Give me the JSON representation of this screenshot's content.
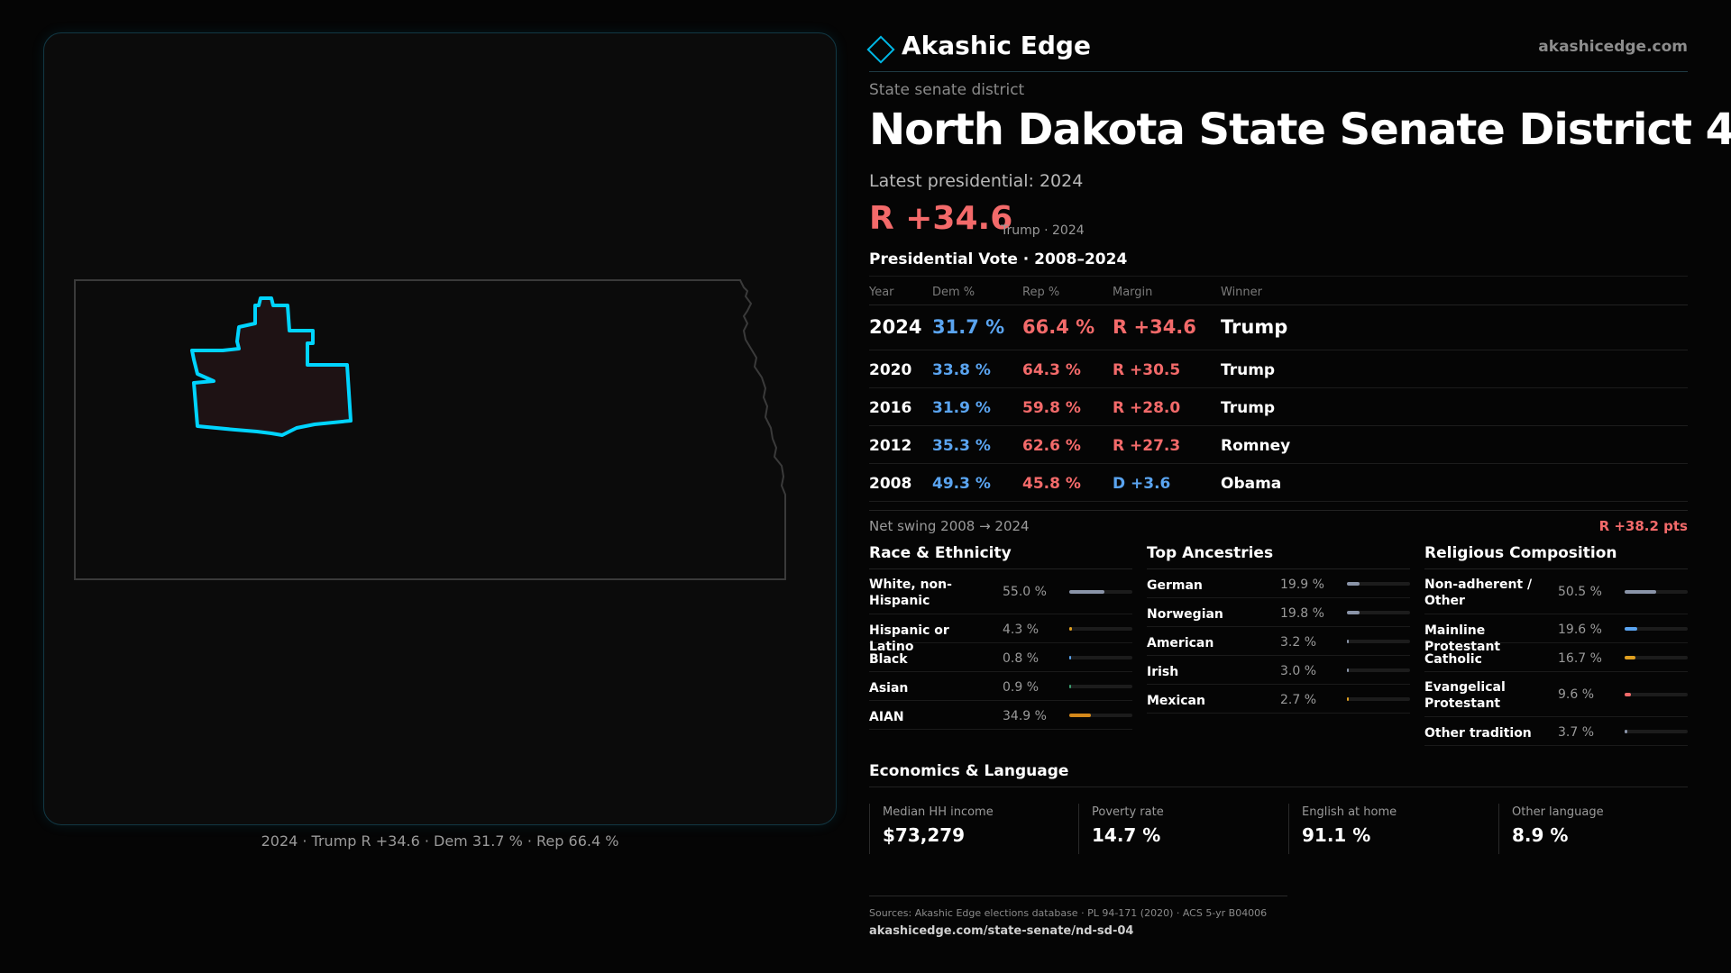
{
  "brand": {
    "name": "Akashic Edge",
    "url": "akashicedge.com"
  },
  "header": {
    "eyebrow": "State senate district",
    "title": "North Dakota State Senate District 4",
    "latest_label": "Latest presidential: 2024",
    "margin": "R +34.6",
    "margin_sub": "Trump · 2024",
    "votes_title": "Presidential Vote · 2008–2024"
  },
  "map": {
    "caption": "2024 · Trump R +34.6 · Dem 31.7 % · Rep 66.4 %",
    "district_color": "#00d4ff",
    "district_fill": "#1e1214"
  },
  "votes": {
    "headers": [
      "Year",
      "Dem %",
      "Rep %",
      "Margin",
      "Winner"
    ],
    "rows": [
      {
        "year": "2024",
        "dem": "31.7 %",
        "rep": "66.4 %",
        "margin": "R +34.6",
        "winner": "Trump",
        "party": "R"
      },
      {
        "year": "2020",
        "dem": "33.8 %",
        "rep": "64.3 %",
        "margin": "R +30.5",
        "winner": "Trump",
        "party": "R"
      },
      {
        "year": "2016",
        "dem": "31.9 %",
        "rep": "59.8 %",
        "margin": "R +28.0",
        "winner": "Trump",
        "party": "R"
      },
      {
        "year": "2012",
        "dem": "35.3 %",
        "rep": "62.6 %",
        "margin": "R +27.3",
        "winner": "Romney",
        "party": "R"
      },
      {
        "year": "2008",
        "dem": "49.3 %",
        "rep": "45.8 %",
        "margin": "D +3.6",
        "winner": "Obama",
        "party": "D"
      }
    ]
  },
  "swing": {
    "label": "Net swing 2008 → 2024",
    "value": "R +38.2 pts"
  },
  "race": {
    "title": "Race & Ethnicity",
    "rows": [
      {
        "label": "White, non-Hispanic",
        "value": "55.0 %",
        "pct": 55.0,
        "color": "#8a94a8"
      },
      {
        "label": "Hispanic or Latino",
        "value": "4.3 %",
        "pct": 4.3,
        "color": "#e0a020"
      },
      {
        "label": "Black",
        "value": "0.8 %",
        "pct": 0.8,
        "color": "#5aa4f0"
      },
      {
        "label": "Asian",
        "value": "0.9 %",
        "pct": 0.9,
        "color": "#3aa070"
      },
      {
        "label": "AIAN",
        "value": "34.9 %",
        "pct": 34.9,
        "color": "#d4881a"
      }
    ]
  },
  "ancestry": {
    "title": "Top Ancestries",
    "rows": [
      {
        "label": "German",
        "value": "19.9 %",
        "pct": 19.9,
        "color": "#8a94a8"
      },
      {
        "label": "Norwegian",
        "value": "19.8 %",
        "pct": 19.8,
        "color": "#8a94a8"
      },
      {
        "label": "American",
        "value": "3.2 %",
        "pct": 3.2,
        "color": "#8a94a8"
      },
      {
        "label": "Irish",
        "value": "3.0 %",
        "pct": 3.0,
        "color": "#8a94a8"
      },
      {
        "label": "Mexican",
        "value": "2.7 %",
        "pct": 2.7,
        "color": "#e0a020"
      }
    ]
  },
  "religion": {
    "title": "Religious Composition",
    "rows": [
      {
        "label": "Non-adherent / Other",
        "value": "50.5 %",
        "pct": 50.5,
        "color": "#8a94a8"
      },
      {
        "label": "Mainline Protestant",
        "value": "19.6 %",
        "pct": 19.6,
        "color": "#5aa4f0"
      },
      {
        "label": "Catholic",
        "value": "16.7 %",
        "pct": 16.7,
        "color": "#e0a020"
      },
      {
        "label": "Evangelical Protestant",
        "value": "9.6 %",
        "pct": 9.6,
        "color": "#f36a6a"
      },
      {
        "label": "Other tradition",
        "value": "3.7 %",
        "pct": 3.7,
        "color": "#8a94a8"
      }
    ]
  },
  "economics": {
    "title": "Economics & Language",
    "cards": [
      {
        "label": "Median HH income",
        "value": "$73,279"
      },
      {
        "label": "Poverty rate",
        "value": "14.7 %"
      },
      {
        "label": "English at home",
        "value": "91.1 %"
      },
      {
        "label": "Other language",
        "value": "8.9 %"
      }
    ]
  },
  "footer": {
    "sources": "Sources: Akashic Edge elections database · PL 94-171 (2020) · ACS 5-yr B04006",
    "url": "akashicedge.com/state-senate/nd-sd-04"
  }
}
